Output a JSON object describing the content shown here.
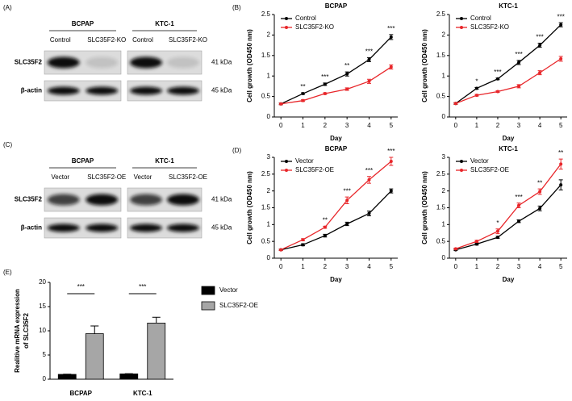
{
  "blots": [
    {
      "label": "(A)",
      "groups": [
        {
          "name": "BCPAP",
          "lanes": [
            "Control",
            "SLC35F2-KO"
          ]
        },
        {
          "name": "KTC-1",
          "lanes": [
            "Control",
            "SLC35F2-KO"
          ]
        }
      ],
      "rows": [
        {
          "name": "SLC35F2",
          "size": "41 kDa"
        },
        {
          "name": "β-actin",
          "size": "45 kDa"
        }
      ]
    },
    {
      "label": "(C)",
      "groups": [
        {
          "name": "BCPAP",
          "lanes": [
            "Vector",
            "SLC35F2-OE"
          ]
        },
        {
          "name": "KTC-1",
          "lanes": [
            "Vector",
            "SLC35F2-OE"
          ]
        }
      ],
      "rows": [
        {
          "name": "SLC35F2",
          "size": "41 kDa"
        },
        {
          "name": "β-actin",
          "size": "45 kDa"
        }
      ]
    }
  ],
  "chart_data": [
    {
      "type": "line",
      "panel_label": "(B)",
      "title": "BCPAP",
      "xlabel": "Day",
      "ylabel": "Cell growth (OD450 nm)",
      "x": [
        0,
        1,
        2,
        3,
        4,
        5
      ],
      "xlim": [
        -0.3,
        5.3
      ],
      "xticks": [
        0,
        1,
        2,
        3,
        4,
        5
      ],
      "ylim": [
        0,
        2.5
      ],
      "yticks": [
        0,
        0.5,
        1,
        1.5,
        2,
        2.5
      ],
      "legend": "upper left",
      "series": [
        {
          "name": "Control",
          "color": "#000000",
          "values": [
            0.32,
            0.57,
            0.8,
            1.05,
            1.4,
            1.95
          ],
          "errors": [
            0.02,
            0.02,
            0.03,
            0.05,
            0.05,
            0.06
          ]
        },
        {
          "name": "SLC35F2-KO",
          "color": "#e8262a",
          "values": [
            0.32,
            0.4,
            0.57,
            0.68,
            0.87,
            1.22
          ],
          "errors": [
            0.02,
            0.02,
            0.02,
            0.03,
            0.05,
            0.05
          ]
        }
      ],
      "annotations": [
        {
          "x": 1,
          "text": "**"
        },
        {
          "x": 2,
          "text": "***"
        },
        {
          "x": 3,
          "text": "**"
        },
        {
          "x": 4,
          "text": "***"
        },
        {
          "x": 5,
          "text": "***"
        }
      ]
    },
    {
      "type": "line",
      "title": "KTC-1",
      "xlabel": "Day",
      "ylabel": "Cell growth (OD450 nm)",
      "x": [
        0,
        1,
        2,
        3,
        4,
        5
      ],
      "xlim": [
        -0.3,
        5.3
      ],
      "xticks": [
        0,
        1,
        2,
        3,
        4,
        5
      ],
      "ylim": [
        0,
        2.5
      ],
      "yticks": [
        0,
        0.5,
        1,
        1.5,
        2,
        2.5
      ],
      "legend": "upper left",
      "series": [
        {
          "name": "Control",
          "color": "#000000",
          "values": [
            0.33,
            0.7,
            0.93,
            1.33,
            1.75,
            2.25
          ],
          "errors": [
            0.02,
            0.02,
            0.02,
            0.05,
            0.05,
            0.05
          ]
        },
        {
          "name": "SLC35F2-KO",
          "color": "#e8262a",
          "values": [
            0.33,
            0.53,
            0.62,
            0.75,
            1.08,
            1.42
          ],
          "errors": [
            0.02,
            0.02,
            0.02,
            0.04,
            0.05,
            0.06
          ]
        }
      ],
      "annotations": [
        {
          "x": 1,
          "text": "*"
        },
        {
          "x": 2,
          "text": "***"
        },
        {
          "x": 3,
          "text": "***"
        },
        {
          "x": 4,
          "text": "***"
        },
        {
          "x": 5,
          "text": "***"
        }
      ]
    },
    {
      "type": "line",
      "panel_label": "(D)",
      "title": "BCPAP",
      "xlabel": "Day",
      "ylabel": "Cell growth (OD450 nm)",
      "x": [
        0,
        1,
        2,
        3,
        4,
        5
      ],
      "xlim": [
        -0.3,
        5.3
      ],
      "xticks": [
        0,
        1,
        2,
        3,
        4,
        5
      ],
      "ylim": [
        0,
        3
      ],
      "yticks": [
        0,
        0.5,
        1,
        1.5,
        2,
        2.5,
        3
      ],
      "legend": "upper left",
      "series": [
        {
          "name": "Vector",
          "color": "#000000",
          "values": [
            0.25,
            0.4,
            0.67,
            1.02,
            1.33,
            2.0
          ],
          "errors": [
            0.02,
            0.03,
            0.04,
            0.05,
            0.07,
            0.06
          ]
        },
        {
          "name": "SLC35F2-OE",
          "color": "#e8262a",
          "values": [
            0.25,
            0.55,
            0.92,
            1.72,
            2.33,
            2.88
          ],
          "errors": [
            0.02,
            0.03,
            0.03,
            0.1,
            0.1,
            0.12
          ]
        }
      ],
      "annotations": [
        {
          "x": 2,
          "text": "**"
        },
        {
          "x": 3,
          "text": "***"
        },
        {
          "x": 4,
          "text": "***"
        },
        {
          "x": 5,
          "text": "***"
        }
      ]
    },
    {
      "type": "line",
      "title": "KTC-1",
      "xlabel": "Day",
      "ylabel": "Cell growth (OD450 nm)",
      "x": [
        0,
        1,
        2,
        3,
        4,
        5
      ],
      "xlim": [
        -0.3,
        5.3
      ],
      "xticks": [
        0,
        1,
        2,
        3,
        4,
        5
      ],
      "ylim": [
        0,
        3
      ],
      "yticks": [
        0,
        0.5,
        1,
        1.5,
        2,
        2.5,
        3
      ],
      "legend": "upper left",
      "series": [
        {
          "name": "Vector",
          "color": "#000000",
          "values": [
            0.25,
            0.42,
            0.62,
            1.1,
            1.48,
            2.18
          ],
          "errors": [
            0.02,
            0.03,
            0.03,
            0.04,
            0.07,
            0.15
          ]
        },
        {
          "name": "SLC35F2-OE",
          "color": "#e8262a",
          "values": [
            0.28,
            0.5,
            0.8,
            1.57,
            1.98,
            2.8
          ],
          "errors": [
            0.02,
            0.03,
            0.07,
            0.07,
            0.08,
            0.15
          ]
        }
      ],
      "annotations": [
        {
          "x": 2,
          "text": "*"
        },
        {
          "x": 3,
          "text": "***"
        },
        {
          "x": 4,
          "text": "**"
        },
        {
          "x": 5,
          "text": "**"
        }
      ]
    },
    {
      "type": "bar",
      "panel_label": "(E)",
      "ylabel": [
        "Realitive mRNA expression",
        "of SLC35F2"
      ],
      "categories": [
        "BCPAP",
        "KTC-1"
      ],
      "ylim": [
        0,
        20
      ],
      "yticks": [
        0,
        5,
        10,
        15,
        20
      ],
      "legend": "right",
      "series": [
        {
          "name": "Vector",
          "color": "#000000",
          "values": [
            1.0,
            1.1
          ],
          "errors": [
            0.05,
            0.05
          ]
        },
        {
          "name": "SLC35F2-OE",
          "color": "#a6a6a6",
          "values": [
            9.4,
            11.6
          ],
          "errors": [
            1.6,
            1.2
          ]
        }
      ],
      "annotations": [
        {
          "x": "BCPAP",
          "text": "***"
        },
        {
          "x": "KTC-1",
          "text": "***"
        }
      ]
    }
  ]
}
